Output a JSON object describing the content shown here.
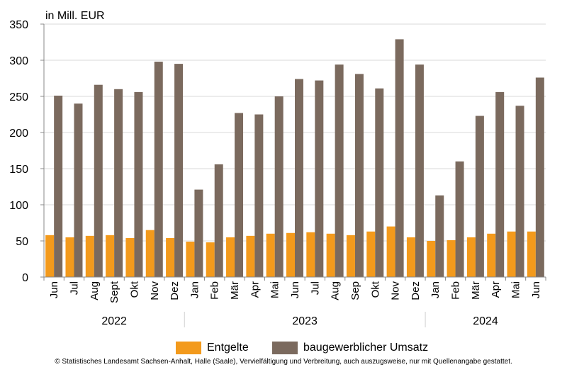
{
  "chart_data": {
    "type": "bar",
    "unit_label": "in Mill. EUR",
    "categories": [
      "Jun",
      "Jul",
      "Aug",
      "Sept",
      "Okt",
      "Nov",
      "Dez",
      "Jan",
      "Feb",
      "Mär",
      "Apr",
      "Mai",
      "Jun",
      "Jul",
      "Aug",
      "Sep",
      "Okt",
      "Nov",
      "Dez",
      "Jan",
      "Feb",
      "Mär",
      "Apr",
      "Mai",
      "Jun"
    ],
    "years": [
      {
        "label": "2022",
        "start": 0,
        "end": 6
      },
      {
        "label": "2023",
        "start": 7,
        "end": 18
      },
      {
        "label": "2024",
        "start": 19,
        "end": 24
      }
    ],
    "series": [
      {
        "name": "Entgelte",
        "color": "#f39a1c",
        "values": [
          58,
          55,
          57,
          58,
          54,
          65,
          54,
          49,
          48,
          55,
          57,
          60,
          61,
          62,
          60,
          58,
          63,
          70,
          55,
          50,
          51,
          55,
          60,
          63,
          63
        ]
      },
      {
        "name": "baugewerblicher Umsatz",
        "color": "#7b6a5e",
        "values": [
          251,
          240,
          266,
          260,
          256,
          298,
          295,
          121,
          156,
          227,
          225,
          250,
          274,
          272,
          294,
          281,
          261,
          329,
          294,
          113,
          160,
          223,
          256,
          237,
          276
        ]
      }
    ],
    "ylim": [
      0,
      350
    ],
    "yticks": [
      0,
      50,
      100,
      150,
      200,
      250,
      300,
      350
    ],
    "grid": true,
    "legend_position": "bottom"
  },
  "source_note": "© Statistisches Landesamt Sachsen-Anhalt, Halle (Saale), Vervielfältigung und Verbreitung, auch auszugsweise, nur mit Quellenangabe gestattet."
}
